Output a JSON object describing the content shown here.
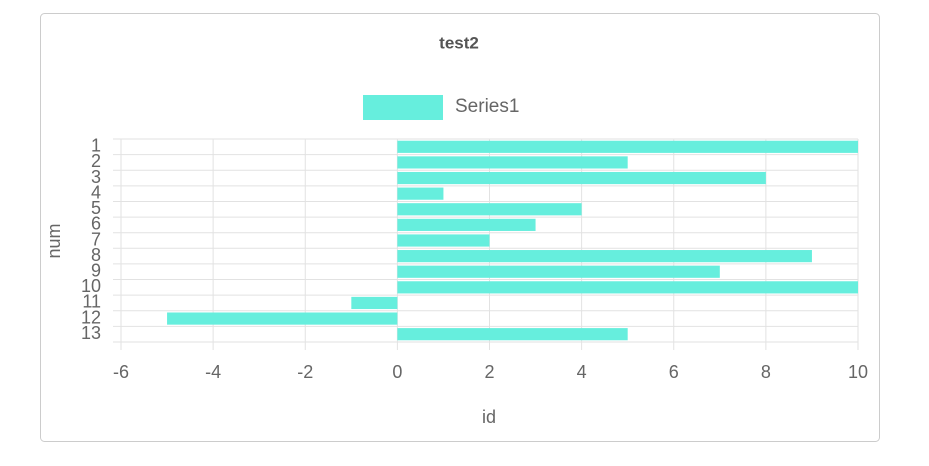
{
  "chart_data": {
    "type": "bar",
    "orientation": "horizontal",
    "title": "test2",
    "x_label": "id",
    "y_label": "num",
    "categories": [
      "1",
      "2",
      "3",
      "4",
      "5",
      "6",
      "7",
      "8",
      "9",
      "10",
      "11",
      "12",
      "13"
    ],
    "series": [
      {
        "name": "Series1",
        "color": "#66eedd",
        "values": [
          10,
          5,
          8,
          1,
          4,
          3,
          2,
          9,
          7,
          10,
          -1,
          -5,
          5
        ]
      }
    ],
    "xlim": [
      -6,
      10
    ],
    "xticks": [
      -6,
      -4,
      -2,
      0,
      2,
      4,
      6,
      8,
      10
    ],
    "grid": true,
    "legend": "top"
  }
}
